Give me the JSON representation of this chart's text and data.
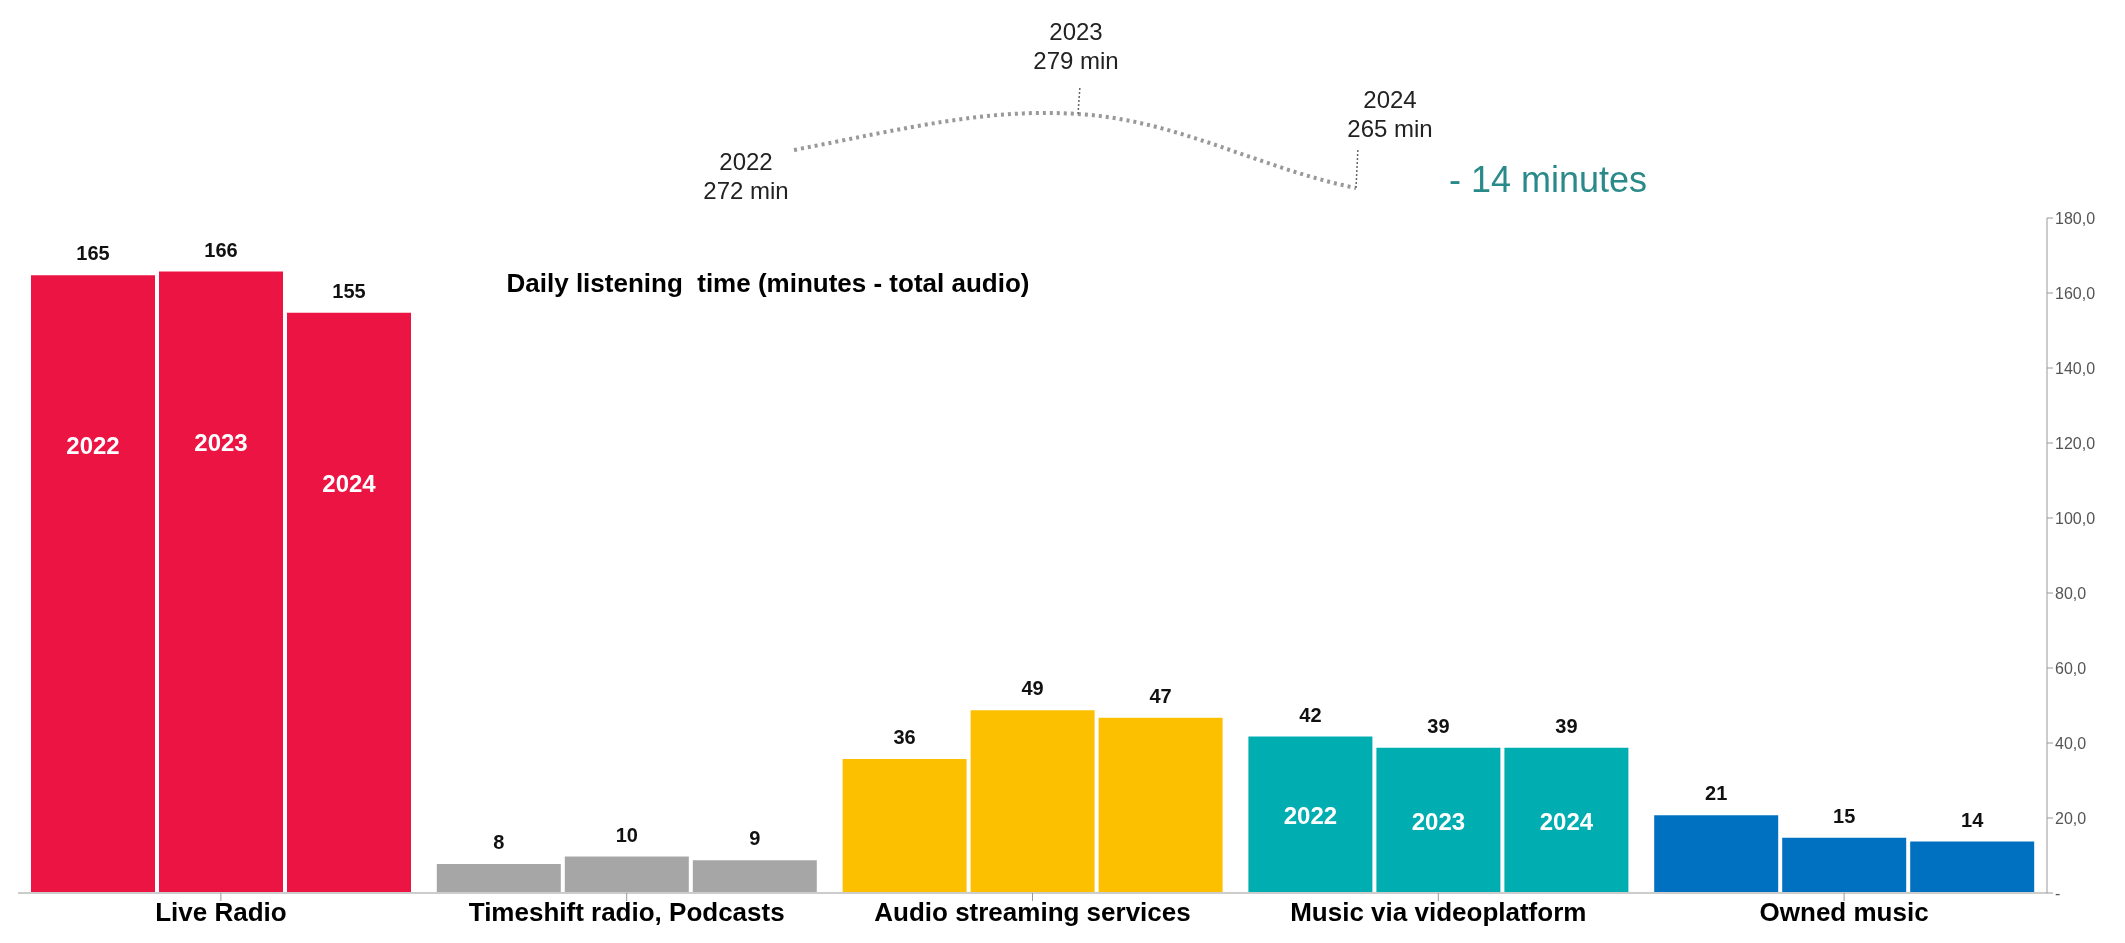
{
  "chart_data": {
    "type": "bar",
    "title": "Daily listening  time (minutes - total audio)",
    "categories": [
      "Live Radio",
      "Timeshift radio, Podcasts",
      "Audio streaming services",
      "Music via videoplatform",
      "Owned music"
    ],
    "series": [
      {
        "name": "2022",
        "colors": [
          "#ec1443",
          "#a6a6a6",
          "#fdc000",
          "#00adb0",
          "#0070c0"
        ],
        "values": [
          165,
          8,
          36,
          42,
          21
        ]
      },
      {
        "name": "2023",
        "colors": [
          "#ec1443",
          "#a6a6a6",
          "#fdc000",
          "#00adb0",
          "#0070c0"
        ],
        "values": [
          166,
          10,
          49,
          39,
          15
        ]
      },
      {
        "name": "2024",
        "colors": [
          "#ec1443",
          "#a6a6a6",
          "#fdc000",
          "#00adb0",
          "#0070c0"
        ],
        "values": [
          155,
          9,
          47,
          39,
          14
        ]
      }
    ],
    "ylim": [
      0,
      180
    ],
    "yticks": [
      {
        "value": 0,
        "label": "-"
      },
      {
        "value": 20,
        "label": "20,0"
      },
      {
        "value": 40,
        "label": "40,0"
      },
      {
        "value": 60,
        "label": "60,0"
      },
      {
        "value": 80,
        "label": "80,0"
      },
      {
        "value": 100,
        "label": "100,0"
      },
      {
        "value": 120,
        "label": "120,0"
      },
      {
        "value": 140,
        "label": "140,0"
      },
      {
        "value": 160,
        "label": "160,0"
      },
      {
        "value": 180,
        "label": "180,0"
      }
    ],
    "data_labels": true,
    "grid": false,
    "legend": false,
    "annotations": [
      "2022\n272 min",
      "2023\n279 min",
      "2024\n265 min",
      "- 14 minutes"
    ]
  }
}
